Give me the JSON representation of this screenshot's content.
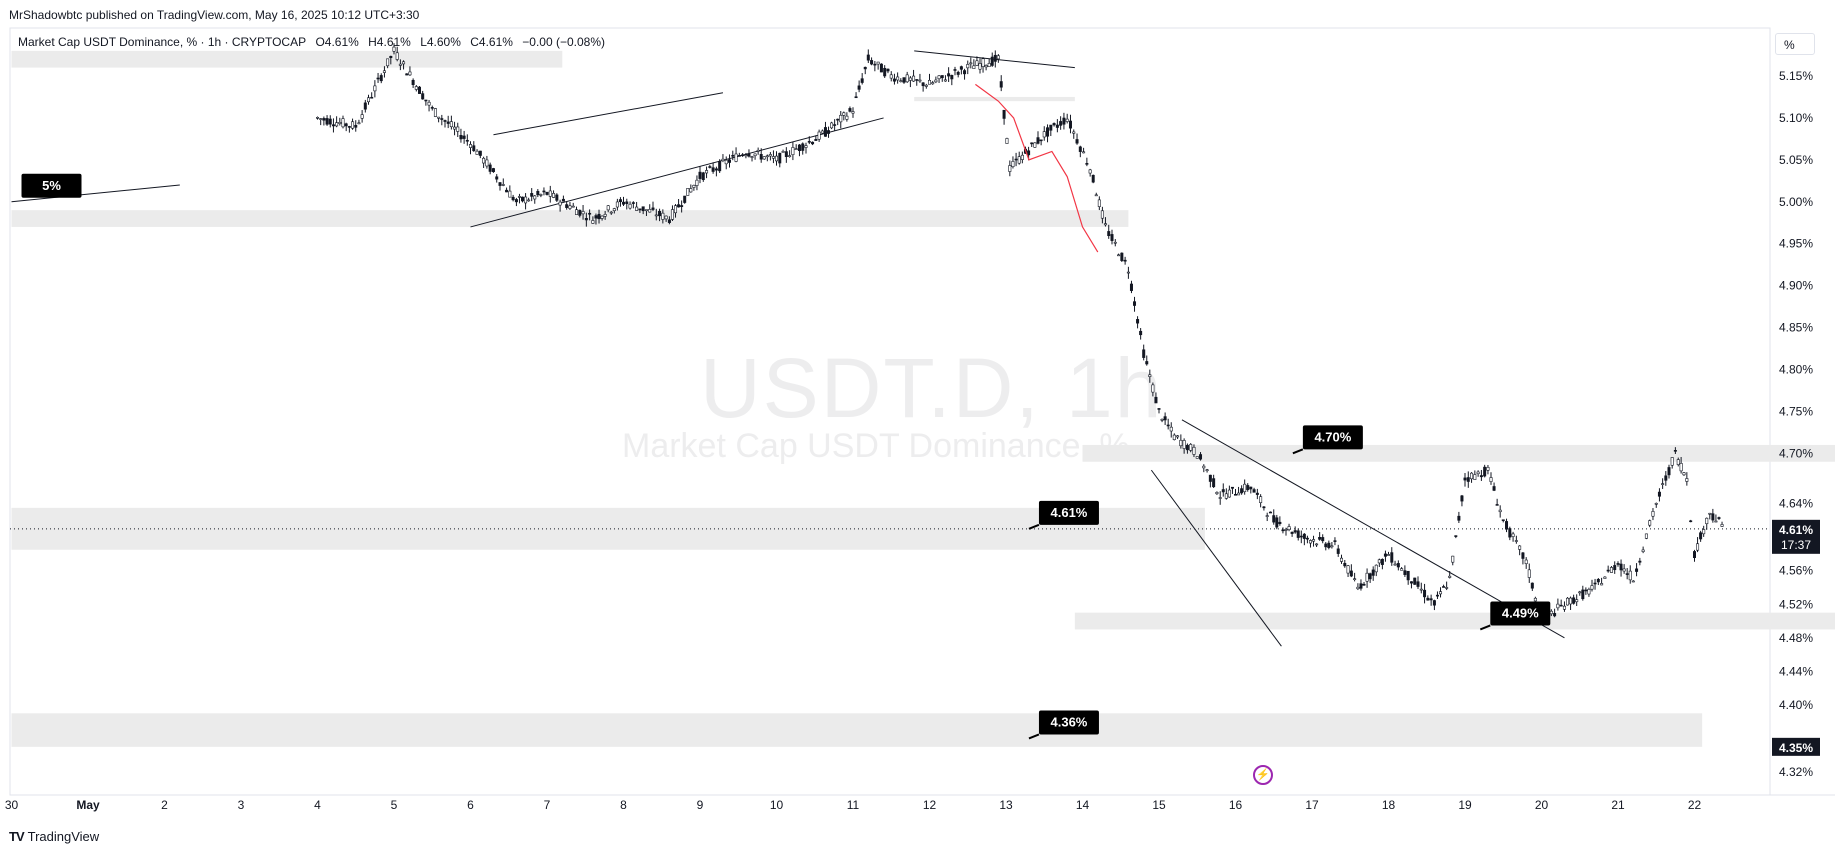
{
  "header": {
    "publisher": "MrShadowbtc published on TradingView.com, May 16, 2025 10:12 UTC+3:30"
  },
  "legend": {
    "symbol": "Market Cap USDT Dominance, % · 1h · CRYPTOCAP",
    "open": "O4.61%",
    "high": "H4.61%",
    "low": "L4.60%",
    "close": "C4.61%",
    "change": "−0.00 (−0.08%)"
  },
  "watermark": {
    "main": "USDT.D, 1h",
    "sub": "Market Cap USDT Dominance, %"
  },
  "scale_mode": "%",
  "footer": {
    "logo": "TradingView"
  },
  "colors": {
    "candle": "#131722",
    "zone": "#ebebeb",
    "label_bg": "#000000",
    "label_text": "#ffffff",
    "forecast": "#f23645",
    "price_tag": "#131722",
    "alert": "#9c27b0"
  },
  "icons": {
    "alert": "lightning-icon",
    "logo": "tradingview-logo-icon"
  },
  "chart_data": {
    "type": "candlestick",
    "title": "Market Cap USDT Dominance, %",
    "timeframe": "1h",
    "x_ticks": [
      "30",
      "May",
      "2",
      "3",
      "4",
      "5",
      "6",
      "7",
      "8",
      "9",
      "10",
      "11",
      "12",
      "13",
      "14",
      "15",
      "16",
      "17",
      "18",
      "19",
      "20",
      "21",
      "22"
    ],
    "y_ticks": [
      "5.15%",
      "5.10%",
      "5.05%",
      "5.00%",
      "4.95%",
      "4.90%",
      "4.85%",
      "4.80%",
      "4.75%",
      "4.70%",
      "4.64%",
      "4.56%",
      "4.52%",
      "4.48%",
      "4.44%",
      "4.40%",
      "4.32%"
    ],
    "ylim": [
      4.3,
      5.2
    ],
    "price_series": [
      {
        "x": 4.0,
        "y": 5.1
      },
      {
        "x": 4.5,
        "y": 5.09
      },
      {
        "x": 5.0,
        "y": 5.18
      },
      {
        "x": 5.5,
        "y": 5.11
      },
      {
        "x": 6.0,
        "y": 5.07
      },
      {
        "x": 6.6,
        "y": 5.0
      },
      {
        "x": 7.0,
        "y": 5.01
      },
      {
        "x": 7.6,
        "y": 4.98
      },
      {
        "x": 8.0,
        "y": 5.0
      },
      {
        "x": 8.6,
        "y": 4.98
      },
      {
        "x": 9.0,
        "y": 5.03
      },
      {
        "x": 9.6,
        "y": 5.06
      },
      {
        "x": 10.0,
        "y": 5.05
      },
      {
        "x": 10.6,
        "y": 5.08
      },
      {
        "x": 11.0,
        "y": 5.11
      },
      {
        "x": 11.2,
        "y": 5.17
      },
      {
        "x": 11.5,
        "y": 5.15
      },
      {
        "x": 12.0,
        "y": 5.14
      },
      {
        "x": 12.5,
        "y": 5.16
      },
      {
        "x": 12.9,
        "y": 5.17
      },
      {
        "x": 13.05,
        "y": 5.04
      },
      {
        "x": 13.5,
        "y": 5.08
      },
      {
        "x": 13.8,
        "y": 5.1
      },
      {
        "x": 14.1,
        "y": 5.04
      },
      {
        "x": 14.3,
        "y": 4.97
      },
      {
        "x": 14.6,
        "y": 4.92
      },
      {
        "x": 14.8,
        "y": 4.82
      },
      {
        "x": 15.0,
        "y": 4.75
      },
      {
        "x": 15.2,
        "y": 4.72
      },
      {
        "x": 15.5,
        "y": 4.7
      },
      {
        "x": 15.8,
        "y": 4.65
      },
      {
        "x": 16.2,
        "y": 4.66
      },
      {
        "x": 16.5,
        "y": 4.62
      },
      {
        "x": 16.9,
        "y": 4.6
      },
      {
        "x": 17.3,
        "y": 4.59
      },
      {
        "x": 17.6,
        "y": 4.54
      },
      {
        "x": 18.0,
        "y": 4.58
      },
      {
        "x": 18.3,
        "y": 4.55
      },
      {
        "x": 18.6,
        "y": 4.52
      },
      {
        "x": 18.8,
        "y": 4.55
      },
      {
        "x": 19.0,
        "y": 4.67
      },
      {
        "x": 19.3,
        "y": 4.68
      },
      {
        "x": 19.5,
        "y": 4.62
      },
      {
        "x": 19.8,
        "y": 4.57
      },
      {
        "x": 20.0,
        "y": 4.5
      },
      {
        "x": 20.3,
        "y": 4.52
      },
      {
        "x": 20.7,
        "y": 4.54
      },
      {
        "x": 21.0,
        "y": 4.57
      },
      {
        "x": 21.2,
        "y": 4.55
      },
      {
        "x": 21.5,
        "y": 4.64
      },
      {
        "x": 21.75,
        "y": 4.7
      },
      {
        "x": 21.9,
        "y": 4.67
      },
      {
        "x": 22.0,
        "y": 4.58
      },
      {
        "x": 22.2,
        "y": 4.63
      },
      {
        "x": 22.4,
        "y": 4.61
      }
    ],
    "zones": [
      {
        "from": 5.16,
        "to": 5.18,
        "x_start": 0.0,
        "x_end": 7.2
      },
      {
        "from": 5.12,
        "to": 5.125,
        "x_start": 11.8,
        "x_end": 13.9
      },
      {
        "from": 4.97,
        "to": 4.99,
        "x_start": 0.0,
        "x_end": 14.6
      },
      {
        "from": 4.69,
        "to": 4.71,
        "x_start": 14.0,
        "x_end": 24.9
      },
      {
        "from": 4.585,
        "to": 4.635,
        "x_start": 0.0,
        "x_end": 15.6
      },
      {
        "from": 4.49,
        "to": 4.51,
        "x_start": 13.9,
        "x_end": 24.9
      },
      {
        "from": 4.35,
        "to": 4.39,
        "x_start": 0.0,
        "x_end": 22.1
      }
    ],
    "level_labels": [
      {
        "text": "4.61%",
        "x": 13.3,
        "y": 4.61
      },
      {
        "text": "4.70%",
        "x": 16.75,
        "y": 4.7
      },
      {
        "text": "4.49%",
        "x": 19.2,
        "y": 4.49
      },
      {
        "text": "4.36%",
        "x": 13.3,
        "y": 4.36
      },
      {
        "text": "5%",
        "x": 0.0,
        "y": 5.0
      }
    ],
    "trendlines": [
      {
        "name": "wedge-upper",
        "points": [
          [
            6.3,
            5.08
          ],
          [
            9.3,
            5.13
          ]
        ]
      },
      {
        "name": "wedge-lower",
        "points": [
          [
            6.0,
            4.97
          ],
          [
            11.4,
            5.1
          ]
        ]
      },
      {
        "name": "channel-upper",
        "points": [
          [
            15.3,
            4.74
          ],
          [
            20.3,
            4.48
          ]
        ]
      },
      {
        "name": "channel-lower",
        "points": [
          [
            14.9,
            4.68
          ],
          [
            16.6,
            4.47
          ]
        ]
      },
      {
        "name": "top-line",
        "points": [
          [
            11.8,
            5.18
          ],
          [
            13.9,
            5.16
          ]
        ]
      },
      {
        "name": "left-line",
        "points": [
          [
            0.0,
            5.0
          ],
          [
            2.2,
            5.02
          ]
        ]
      }
    ],
    "forecast_path": [
      [
        12.6,
        5.14
      ],
      [
        12.9,
        5.12
      ],
      [
        13.1,
        5.1
      ],
      [
        13.3,
        5.05
      ],
      [
        13.6,
        5.06
      ],
      [
        13.8,
        5.03
      ],
      [
        14.0,
        4.97
      ],
      [
        14.2,
        4.94
      ]
    ],
    "current_price": {
      "value": "4.61%",
      "countdown": "17:37",
      "y": 4.61
    },
    "second_price": {
      "value": "4.35%",
      "y": 4.35
    }
  }
}
